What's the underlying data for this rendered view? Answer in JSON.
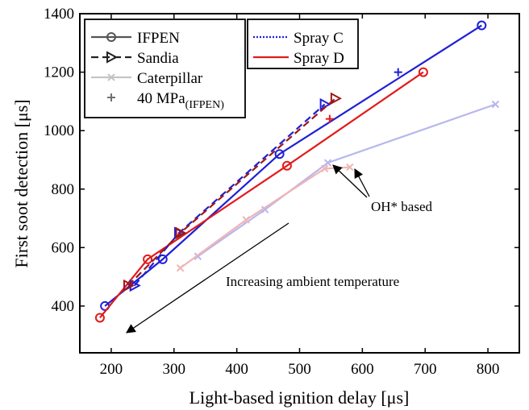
{
  "chart_data": {
    "type": "line",
    "title": "",
    "xlabel": "Light-based ignition delay [μs]",
    "ylabel": "First soot detection [μs]",
    "xlim": [
      150,
      850
    ],
    "ylim": [
      240,
      1400
    ],
    "xticks": [
      200,
      300,
      400,
      500,
      600,
      700,
      800
    ],
    "yticks": [
      400,
      600,
      800,
      1000,
      1200,
      1400
    ],
    "grid": false,
    "legend_position": "top-left",
    "legend_datasets": [
      {
        "label": "IFPEN",
        "marker": "circle",
        "dash": "solid"
      },
      {
        "label": "Sandia",
        "marker": "triangle-right",
        "dash": "dashed"
      },
      {
        "label": "Caterpillar",
        "marker": "x",
        "dash": "solid"
      },
      {
        "label": "40 MPa",
        "sub": "(IFPEN)",
        "marker": "plus",
        "dash": "none"
      }
    ],
    "legend_sprays": [
      {
        "label": "Spray C",
        "color": "#1f1fd6",
        "dash": "dotted"
      },
      {
        "label": "Spray D",
        "color": "#e11b1b",
        "dash": "solid"
      }
    ],
    "series": [
      {
        "dataset": "IFPEN",
        "spray": "Spray C",
        "color": "#1f1fd6",
        "dash": "solid",
        "marker": "circle",
        "points": [
          [
            190,
            400
          ],
          [
            282,
            560
          ],
          [
            468,
            920
          ],
          [
            790,
            1360
          ]
        ]
      },
      {
        "dataset": "IFPEN",
        "spray": "Spray D",
        "color": "#e11b1b",
        "dash": "solid",
        "marker": "circle",
        "points": [
          [
            182,
            360
          ],
          [
            258,
            560
          ],
          [
            480,
            880
          ],
          [
            697,
            1200
          ]
        ]
      },
      {
        "dataset": "Sandia",
        "spray": "Spray C",
        "color": "#1f1fd6",
        "dash": "dashed",
        "marker": "triangle-right",
        "points": [
          [
            237,
            470
          ],
          [
            308,
            650
          ],
          [
            540,
            1090
          ]
        ]
      },
      {
        "dataset": "Sandia",
        "spray": "Spray D",
        "color": "#a01818",
        "dash": "dashed",
        "marker": "triangle-right",
        "points": [
          [
            227,
            470
          ],
          [
            310,
            650
          ],
          [
            557,
            1110
          ]
        ]
      },
      {
        "dataset": "Caterpillar",
        "spray": "Spray C",
        "color": "#b7b7ee",
        "dash": "solid",
        "marker": "x",
        "points": [
          [
            338,
            570
          ],
          [
            445,
            730
          ],
          [
            545,
            890
          ],
          [
            812,
            1090
          ]
        ]
      },
      {
        "dataset": "Caterpillar",
        "spray": "Spray D",
        "color": "#f0b4b4",
        "dash": "solid",
        "marker": "x",
        "points": [
          [
            310,
            530
          ],
          [
            415,
            695
          ],
          [
            540,
            870
          ],
          [
            580,
            875
          ]
        ]
      }
    ],
    "series_40mpa": [
      {
        "spray": "Spray C",
        "color": "#1f1fd6",
        "marker": "plus",
        "points": [
          [
            657,
            1200
          ]
        ]
      },
      {
        "spray": "Spray D",
        "color": "#e11b1b",
        "marker": "plus",
        "points": [
          [
            548,
            1040
          ]
        ]
      }
    ],
    "annotations": {
      "oh_label": "OH* based",
      "temperature_label": "Increasing ambient temperature"
    }
  }
}
